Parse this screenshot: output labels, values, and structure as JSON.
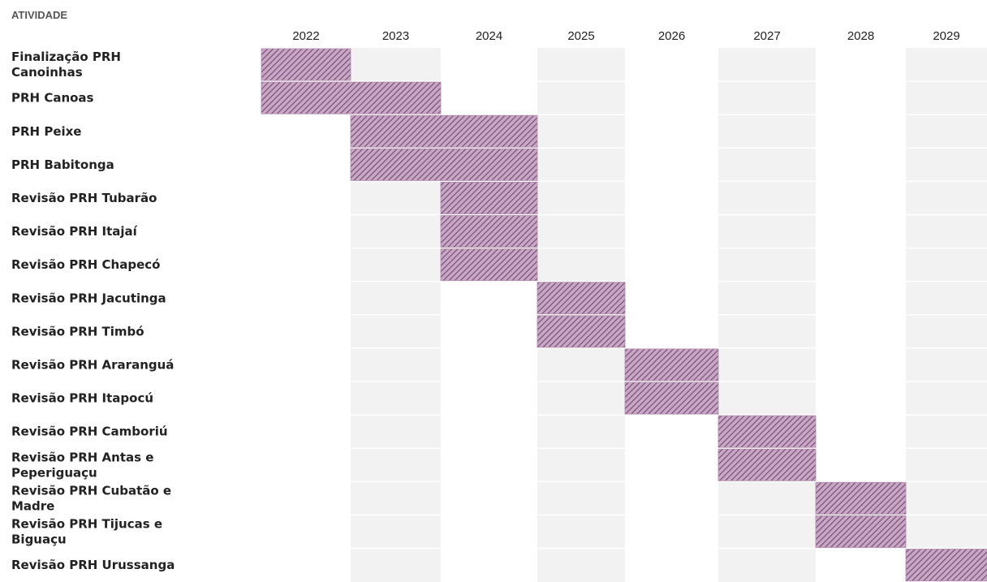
{
  "chart_data": {
    "type": "gantt",
    "header_label": "ATIVIDADE",
    "years": [
      "2022",
      "2023",
      "2024",
      "2025",
      "2026",
      "2027",
      "2028",
      "2029"
    ],
    "tasks": [
      {
        "label": [
          "Finalização PRH",
          "Canoinhas"
        ],
        "start": 2022,
        "end": 2022
      },
      {
        "label": [
          "PRH Canoas"
        ],
        "start": 2022,
        "end": 2023
      },
      {
        "label": [
          "PRH Peixe"
        ],
        "start": 2023,
        "end": 2024
      },
      {
        "label": [
          "PRH Babitonga"
        ],
        "start": 2023,
        "end": 2024
      },
      {
        "label": [
          "Revisão PRH Tubarão"
        ],
        "start": 2024,
        "end": 2024
      },
      {
        "label": [
          "Revisão PRH Itajaí"
        ],
        "start": 2024,
        "end": 2024
      },
      {
        "label": [
          "Revisão PRH Chapecó"
        ],
        "start": 2024,
        "end": 2024
      },
      {
        "label": [
          "Revisão PRH Jacutinga"
        ],
        "start": 2025,
        "end": 2025
      },
      {
        "label": [
          "Revisão PRH Timbó"
        ],
        "start": 2025,
        "end": 2025
      },
      {
        "label": [
          "Revisão PRH Araranguá"
        ],
        "start": 2026,
        "end": 2026
      },
      {
        "label": [
          "Revisão PRH Itapocú"
        ],
        "start": 2026,
        "end": 2026
      },
      {
        "label": [
          "Revisão PRH Camboriú"
        ],
        "start": 2027,
        "end": 2027
      },
      {
        "label": [
          "Revisão PRH Antas e",
          "Peperiguaçu"
        ],
        "start": 2027,
        "end": 2027
      },
      {
        "label": [
          "Revisão PRH Cubatão e",
          "Madre"
        ],
        "start": 2028,
        "end": 2028
      },
      {
        "label": [
          "Revisão PRH Tijucas e",
          "Biguaçu"
        ],
        "start": 2028,
        "end": 2028
      },
      {
        "label": [
          "Revisão PRH Urussanga"
        ],
        "start": 2029,
        "end": 2029
      }
    ],
    "colors": {
      "bar_fill": "#c9a6c6",
      "bar_hatch": "#6f4a6c",
      "shaded_column": "#f2f2f2"
    }
  }
}
